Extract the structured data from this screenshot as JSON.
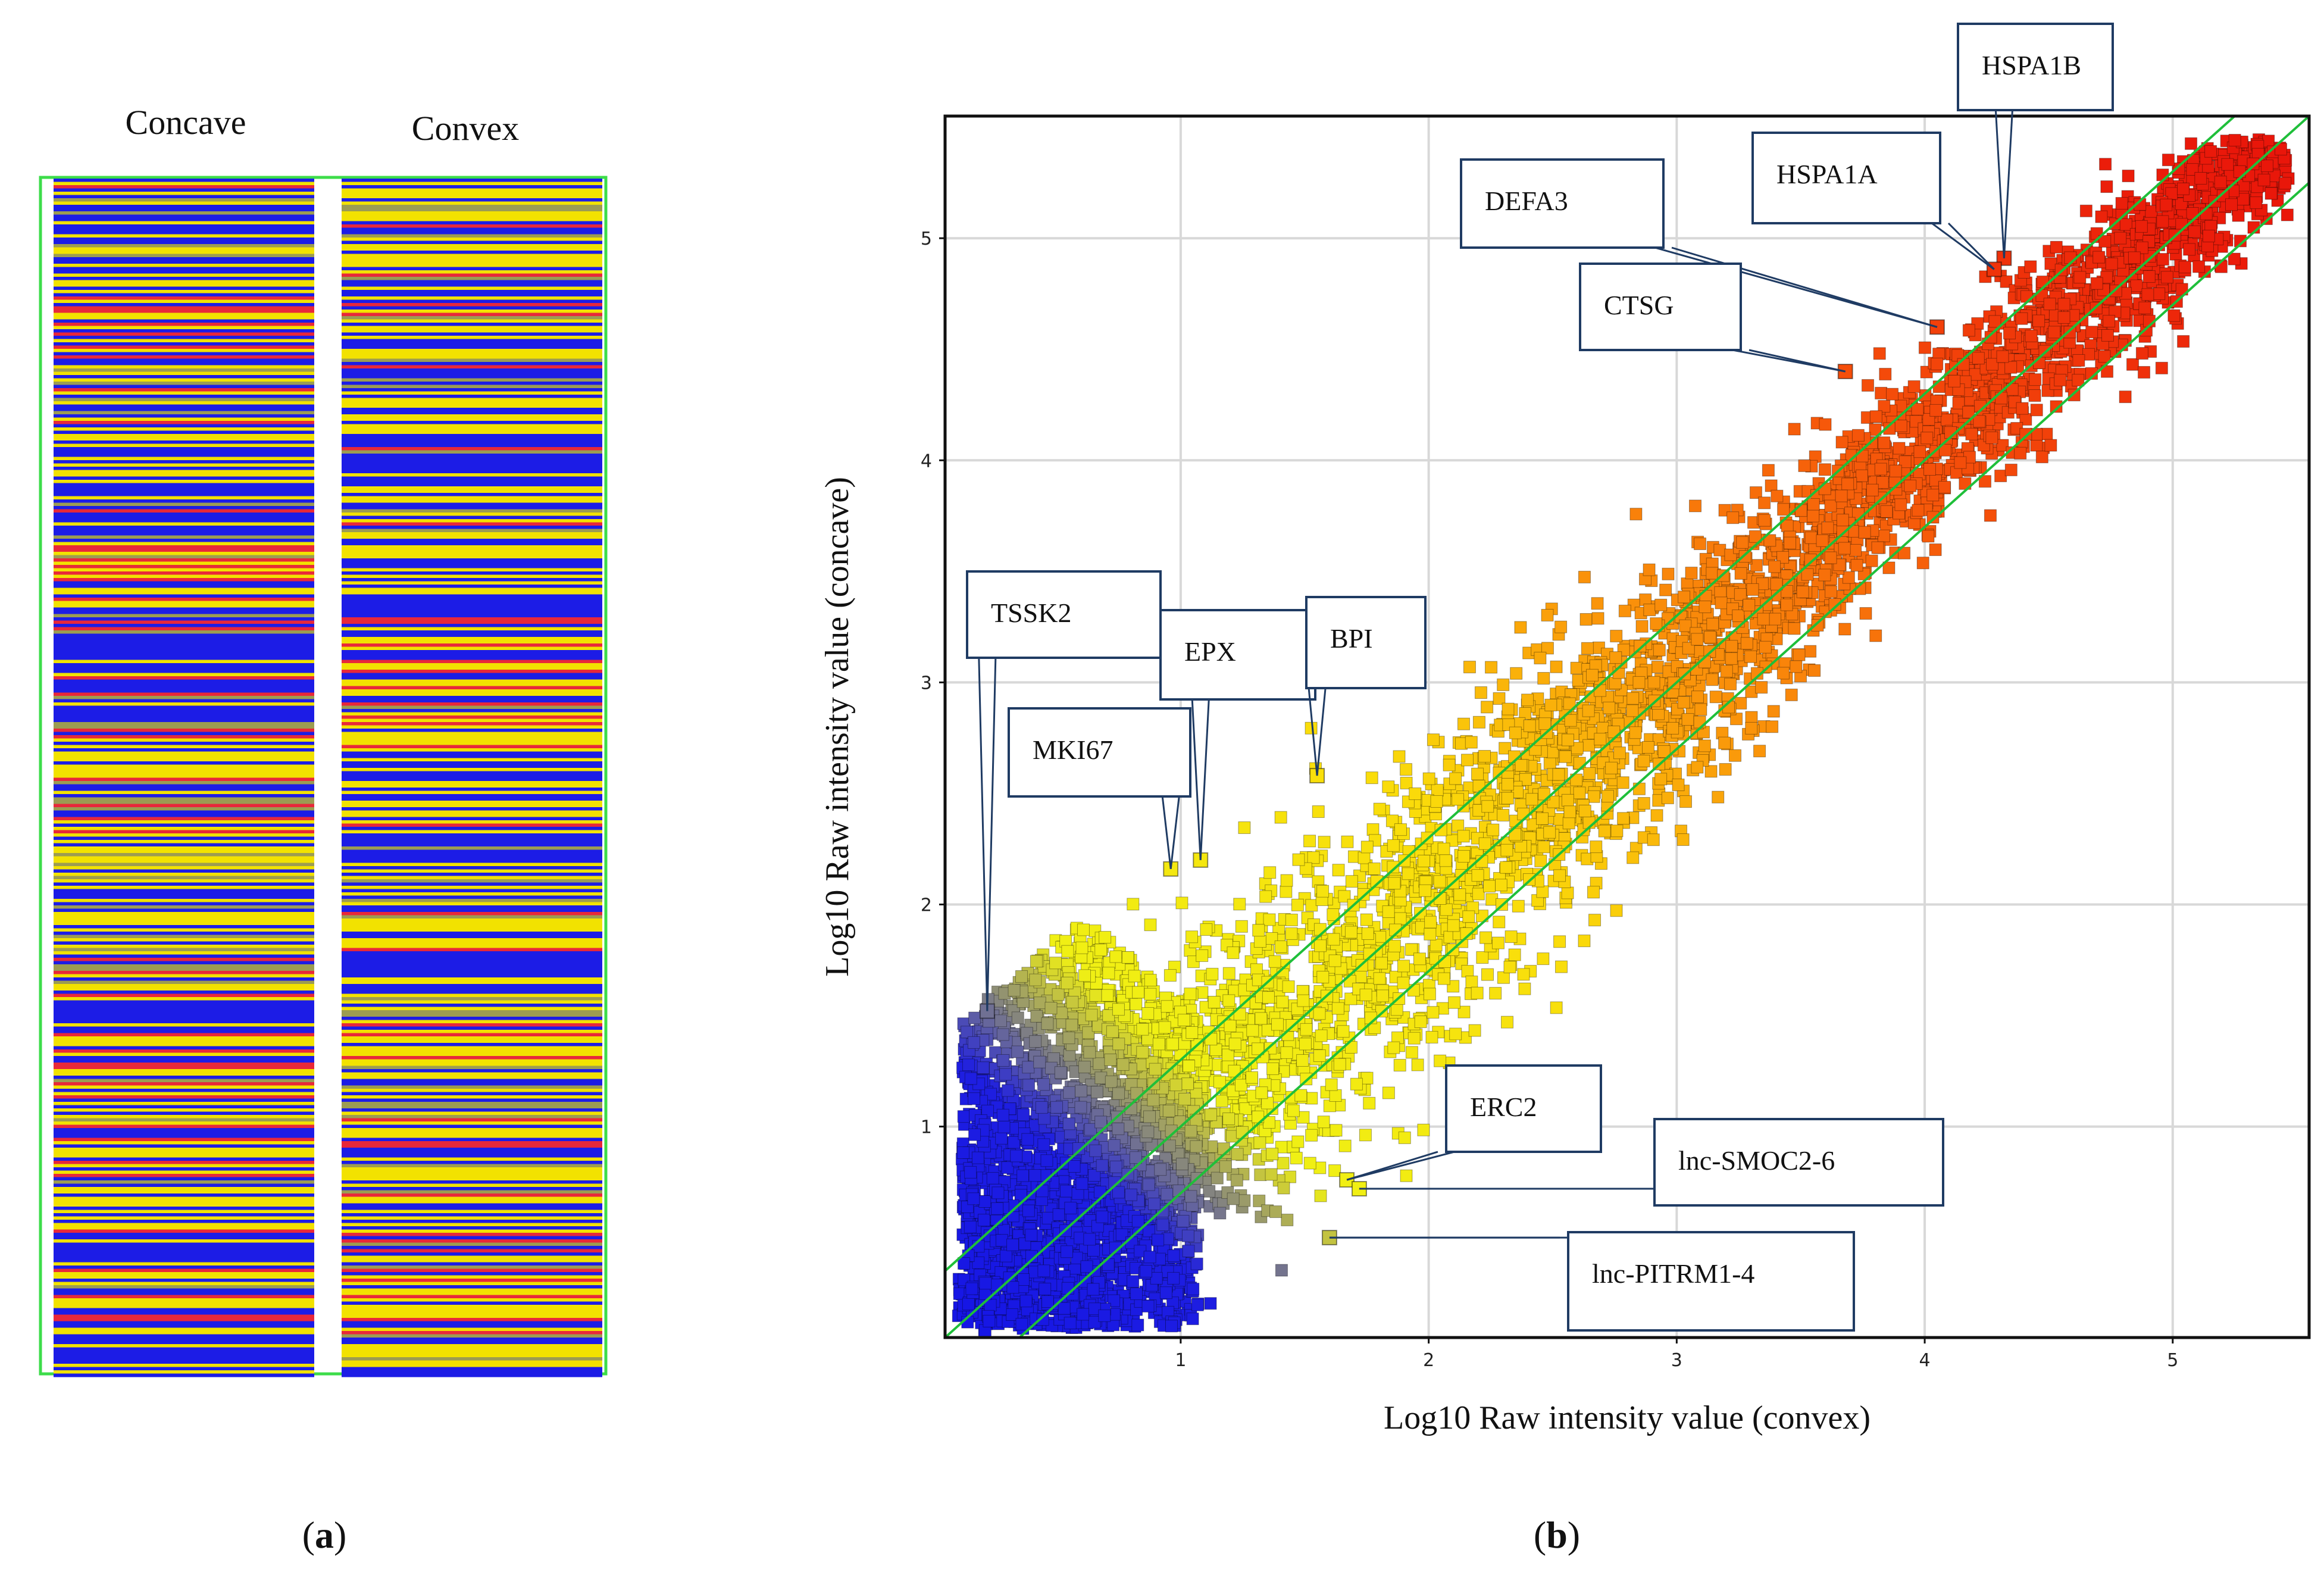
{
  "panel_a": {
    "label": "a",
    "columns": [
      "Concave",
      "Convex"
    ],
    "colors": {
      "low": "#1c1ce6",
      "mid": "#f2e200",
      "high": "#e8283a",
      "olive": "#9c9c52",
      "frame": "#3ddc4a"
    }
  },
  "panel_b": {
    "label": "b",
    "annotations": [
      {
        "name": "HSPA1B",
        "x": 4.32,
        "y": 4.91
      },
      {
        "name": "HSPA1A",
        "x": 4.28,
        "y": 4.86
      },
      {
        "name": "DEFA3",
        "x": 4.05,
        "y": 4.6
      },
      {
        "name": "CTSG",
        "x": 3.68,
        "y": 4.4
      },
      {
        "name": "TSSK2",
        "x": 0.22,
        "y": 1.52
      },
      {
        "name": "EPX",
        "x": 1.08,
        "y": 2.2
      },
      {
        "name": "BPI",
        "x": 1.55,
        "y": 2.58
      },
      {
        "name": "MKI67",
        "x": 0.96,
        "y": 2.16
      },
      {
        "name": "ERC2",
        "x": 1.67,
        "y": 0.76
      },
      {
        "name": "lnc-SMOC2-6",
        "x": 1.72,
        "y": 0.72
      },
      {
        "name": "lnc-PITRM1-4",
        "x": 1.6,
        "y": 0.5
      }
    ]
  },
  "chart_data": {
    "type": "scatter",
    "title": "",
    "xlabel": "Log10 Raw intensity  value  (convex)",
    "ylabel": "Log10  Raw intensity  value  (concave)",
    "xlim": [
      0.05,
      5.55
    ],
    "ylim": [
      0.05,
      5.55
    ],
    "xticks": [
      1,
      2,
      3,
      4,
      5
    ],
    "yticks": [
      1,
      2,
      3,
      4,
      5
    ],
    "grid": true,
    "reference_lines": [
      {
        "name": "y = x + 0.3",
        "offset": 0.3
      },
      {
        "name": "y = x",
        "offset": 0
      },
      {
        "name": "y = x - 0.3",
        "offset": -0.3
      }
    ],
    "series": [
      {
        "name": "genes",
        "description": "approximately linear cloud along y = x, colored by intensity from blue (low) through yellow to red (high)",
        "x_range": [
          0.1,
          5.5
        ],
        "y_range": [
          0.1,
          5.45
        ]
      }
    ]
  }
}
